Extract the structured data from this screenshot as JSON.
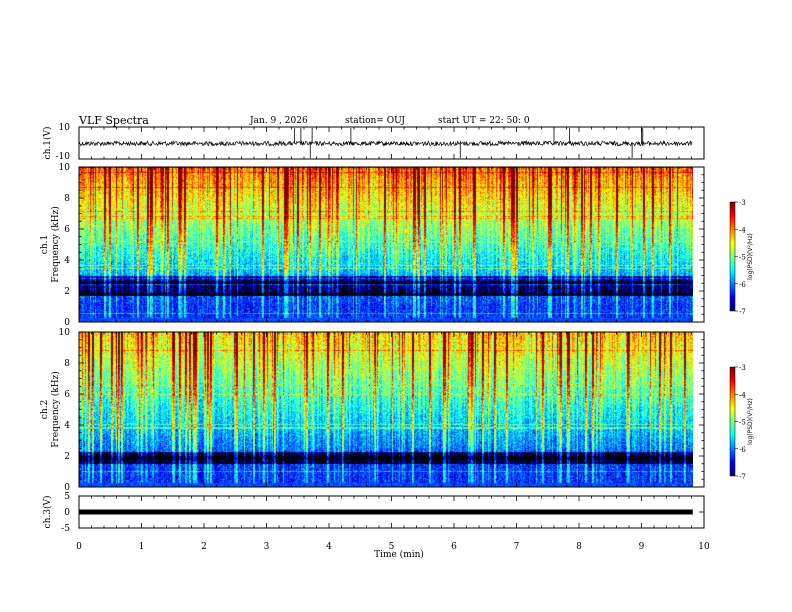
{
  "header": {
    "title": "VLF Spectra",
    "date": "Jan. 9 , 2026",
    "station": "station= OUJ",
    "start": "start UT = 22: 50: 0"
  },
  "chart_data": [
    {
      "type": "line",
      "name": "ch1-waveform",
      "ylabel": "ch.1(V)",
      "ylim": [
        -10,
        10
      ],
      "yticks": [
        "10",
        "-10"
      ],
      "xlim": [
        0,
        10
      ],
      "baseline": 0,
      "spikes_min": [
        3.45,
        3.55,
        3.7,
        3.73,
        4.35,
        6.1,
        7.6,
        7.85,
        8.85,
        9.0,
        9.02
      ]
    },
    {
      "type": "heatmap",
      "name": "ch1-spectrogram",
      "ylabel_line1": "ch.1",
      "ylabel_line2": "Frequency (kHz)",
      "ylim": [
        0,
        10
      ],
      "yticks": [
        "0",
        "2",
        "4",
        "6",
        "8",
        "10"
      ],
      "xlim": [
        0,
        9.82
      ],
      "colorbar": {
        "label": "log(PSD)(V²/Hz)",
        "range": [
          -7,
          -3
        ],
        "ticks": [
          "-3",
          "-4",
          "-5",
          "-6",
          "-7"
        ]
      }
    },
    {
      "type": "heatmap",
      "name": "ch2-spectrogram",
      "ylabel_line1": "ch.2",
      "ylabel_line2": "Frequency (kHz)",
      "ylim": [
        0,
        10
      ],
      "yticks": [
        "0",
        "2",
        "4",
        "6",
        "8",
        "10"
      ],
      "xlim": [
        0,
        9.82
      ],
      "colorbar": {
        "label": "log(PSD)(V²/Hz)",
        "range": [
          -7,
          -3
        ],
        "ticks": [
          "-3",
          "-4",
          "-5",
          "-6",
          "-7"
        ]
      }
    },
    {
      "type": "line",
      "name": "ch3-waveform",
      "ylabel": "ch.3(V)",
      "ylim": [
        -5,
        5
      ],
      "yticks": [
        "5",
        "0",
        "-5"
      ],
      "xlim": [
        0,
        10
      ],
      "baseline": 0
    }
  ],
  "xaxis": {
    "label": "Time (min)",
    "ticks": [
      "0",
      "1",
      "2",
      "3",
      "4",
      "5",
      "6",
      "7",
      "8",
      "9",
      "10"
    ]
  }
}
